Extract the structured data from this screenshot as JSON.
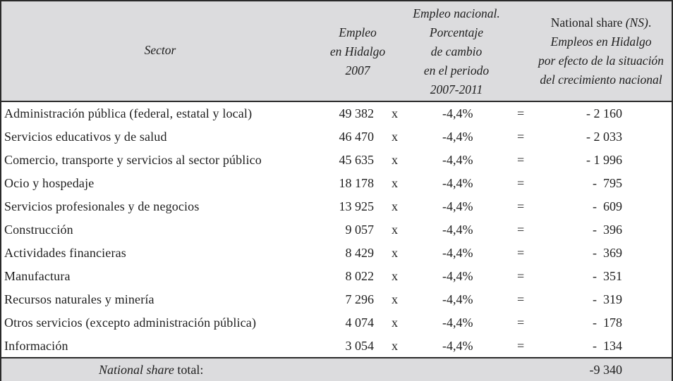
{
  "table": {
    "header": {
      "sector": "Sector",
      "empleo_hidalgo": [
        "Empleo",
        "en Hidalgo",
        "2007"
      ],
      "empleo_nacional": [
        "Empleo nacional.",
        "Porcentaje",
        "de cambio",
        "en el periodo",
        "2007-2011"
      ],
      "national_share": {
        "line1_upright": "National share ",
        "line1_italic": "(NS)",
        "line1_end": ".",
        "lines": [
          "Empleos en Hidalgo",
          "por efecto de la situación",
          "del crecimiento nacional"
        ]
      }
    },
    "rows": [
      {
        "sector": "Administración pública (federal, estatal y local)",
        "empleo": "49 382",
        "op": "x",
        "pct": "-4,4%",
        "eq": "=",
        "ns": "- 2 160"
      },
      {
        "sector": "Servicios educativos y de salud",
        "empleo": "46 470",
        "op": "x",
        "pct": "-4,4%",
        "eq": "=",
        "ns": "- 2 033"
      },
      {
        "sector": "Comercio, transporte y servicios al sector público",
        "empleo": "45 635",
        "op": "x",
        "pct": "-4,4%",
        "eq": "=",
        "ns": "- 1 996"
      },
      {
        "sector": "Ocio y hospedaje",
        "empleo": "18 178",
        "op": "x",
        "pct": "-4,4%",
        "eq": "=",
        "ns": "-  795"
      },
      {
        "sector": "Servicios profesionales y de negocios",
        "empleo": "13 925",
        "op": "x",
        "pct": "-4,4%",
        "eq": "=",
        "ns": "-  609"
      },
      {
        "sector": "Construcción",
        "empleo": "9 057",
        "op": "x",
        "pct": "-4,4%",
        "eq": "=",
        "ns": "-  396"
      },
      {
        "sector": "Actividades financieras",
        "empleo": "8 429",
        "op": "x",
        "pct": "-4,4%",
        "eq": "=",
        "ns": "-  369"
      },
      {
        "sector": "Manufactura",
        "empleo": "8 022",
        "op": "x",
        "pct": "-4,4%",
        "eq": "=",
        "ns": "-  351"
      },
      {
        "sector": "Recursos naturales y minería",
        "empleo": "7 296",
        "op": "x",
        "pct": "-4,4%",
        "eq": "=",
        "ns": "-  319"
      },
      {
        "sector": "Otros servicios (excepto administración pública)",
        "empleo": "4 074",
        "op": "x",
        "pct": "-4,4%",
        "eq": "=",
        "ns": "-  178"
      },
      {
        "sector": "Información",
        "empleo": "3 054",
        "op": "x",
        "pct": "-4,4%",
        "eq": "=",
        "ns": "-  134"
      }
    ],
    "footer": {
      "label_italic": "National share",
      "label_rest": " total:",
      "value": "-9 340"
    }
  },
  "colors": {
    "header_bg": "#dcdcde",
    "footer_bg": "#dcdcde",
    "border": "#2a2a2a",
    "text": "#1e1e1e"
  }
}
